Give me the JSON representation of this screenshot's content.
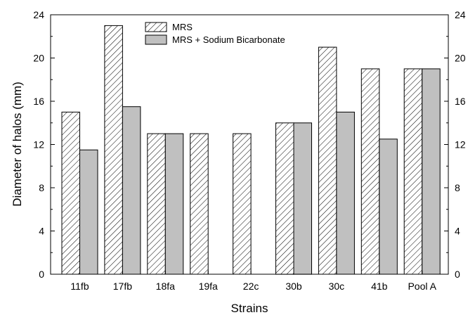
{
  "chart_data": {
    "type": "bar",
    "categories": [
      "11fb",
      "17fb",
      "18fa",
      "19fa",
      "22c",
      "30b",
      "30c",
      "41b",
      "Pool A"
    ],
    "series": [
      {
        "name": "MRS",
        "values": [
          15,
          23,
          13,
          13,
          13,
          14,
          21,
          19,
          19
        ],
        "fill": "hatched"
      },
      {
        "name": "MRS + Sodium Bicarbonate",
        "values": [
          11.5,
          15.5,
          13,
          0,
          0,
          14,
          15,
          12.5,
          19
        ],
        "fill": "#c0c0c0"
      }
    ],
    "xlabel": "Strains",
    "ylabel": "Diameter of halos (mm)",
    "ylim": [
      0,
      24
    ],
    "yticks": [
      0,
      4,
      8,
      12,
      16,
      20,
      24
    ],
    "right_axis_mirrored": true,
    "grid": false,
    "legend_position": "top-center"
  }
}
